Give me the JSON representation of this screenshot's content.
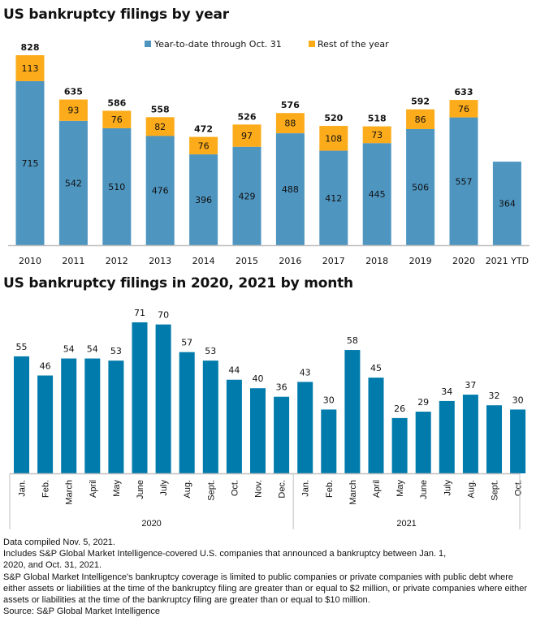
{
  "chart_data": [
    {
      "type": "bar",
      "stacked": true,
      "title": "US bankruptcy filings by year",
      "categories": [
        "2010",
        "2011",
        "2012",
        "2013",
        "2014",
        "2015",
        "2016",
        "2017",
        "2018",
        "2019",
        "2020",
        "2021 YTD"
      ],
      "series": [
        {
          "name": "Year-to-date through Oct. 31",
          "color": "#4e95c0",
          "values": [
            715,
            542,
            510,
            476,
            396,
            429,
            488,
            412,
            445,
            506,
            557,
            364
          ]
        },
        {
          "name": "Rest of the year",
          "color": "#fcab1b",
          "values": [
            113,
            93,
            76,
            82,
            76,
            97,
            88,
            108,
            73,
            86,
            76,
            null
          ]
        }
      ],
      "totals": [
        828,
        635,
        586,
        558,
        472,
        526,
        576,
        520,
        518,
        592,
        633,
        null
      ],
      "xlabel": "",
      "ylabel": "",
      "ylim": [
        0,
        828
      ],
      "grid": false,
      "legend_position": "top-right"
    },
    {
      "type": "bar",
      "title": "US bankruptcy filings in 2020, 2021 by month",
      "color": "#007bac",
      "groups": [
        {
          "label": "2020",
          "categories": [
            "Jan.",
            "Feb.",
            "March",
            "April",
            "May",
            "June",
            "July",
            "Aug.",
            "Sept.",
            "Oct.",
            "Nov.",
            "Dec."
          ],
          "values": [
            55,
            46,
            54,
            54,
            53,
            71,
            70,
            57,
            53,
            44,
            40,
            36
          ]
        },
        {
          "label": "2021",
          "categories": [
            "Jan.",
            "Feb.",
            "March",
            "April",
            "May",
            "June",
            "July",
            "Aug.",
            "Sept.",
            "Oct."
          ],
          "values": [
            43,
            30,
            58,
            45,
            26,
            29,
            34,
            37,
            32,
            30
          ]
        }
      ],
      "xlabel": "",
      "ylabel": "",
      "ylim": [
        0,
        71
      ],
      "grid": false
    }
  ],
  "notes": [
    "Data compiled Nov. 5, 2021.",
    "Includes S&P Global Market Intelligence-covered U.S. companies that announced a bankruptcy between Jan. 1, 2020, and Oct. 31, 2021.",
    "S&P Global Market Intelligence's bankruptcy coverage is limited to public companies or private companies with public debt where either assets or liabilities at the time of the bankruptcy filing are greater than or equal to $2 million, or private companies where either assets or liabilities at the time of the bankruptcy filing are greater than or equal to $10 million.",
    "Source: S&P Global Market Intelligence"
  ]
}
